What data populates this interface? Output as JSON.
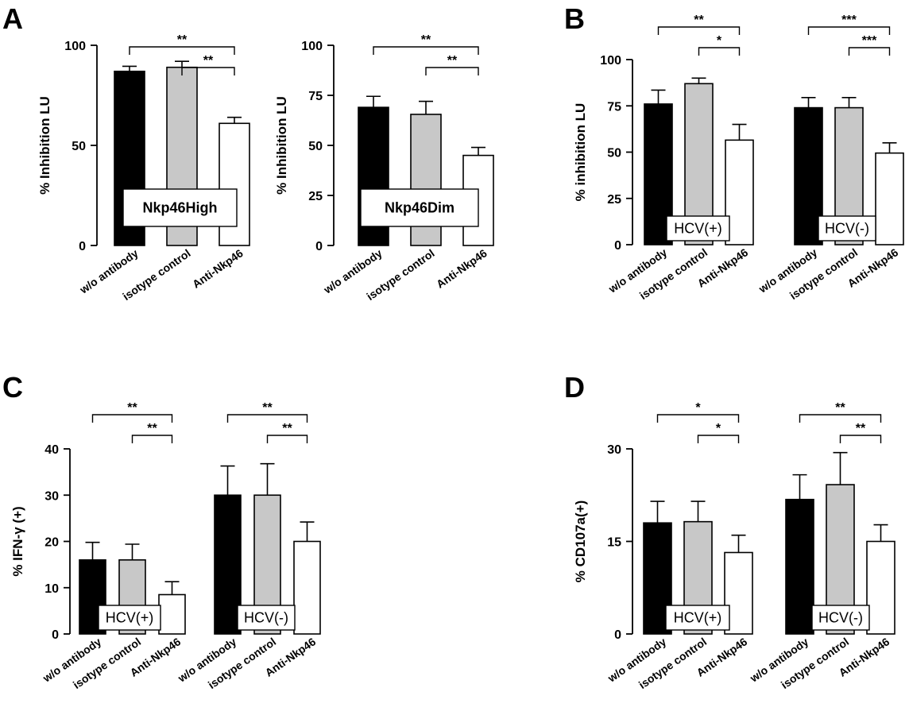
{
  "figure": {
    "panel_letters": [
      "A",
      "B",
      "C",
      "D"
    ]
  },
  "chart_data": [
    {
      "id": "A1",
      "panel": "A",
      "type": "bar",
      "title": "",
      "xlabel": "",
      "ylabel": "% Inhibition LU",
      "ylim": [
        0,
        100
      ],
      "yticks": [
        0,
        50,
        100
      ],
      "categories": [
        "w/o antibody",
        "isotype control",
        "Anti-Nkp46"
      ],
      "groups": [
        {
          "label": "Nkp46High",
          "values": [
            87,
            89,
            61
          ],
          "errors": [
            2.5,
            3,
            3
          ]
        }
      ],
      "fills": [
        "#000000",
        "#c8c8c8",
        "#ffffff"
      ],
      "brackets": [
        {
          "group": 0,
          "from": 0,
          "to": 2,
          "label": "**"
        },
        {
          "group": 0,
          "from": 1,
          "to": 2,
          "label": "**"
        }
      ],
      "grid": false
    },
    {
      "id": "A2",
      "panel": "",
      "type": "bar",
      "title": "",
      "xlabel": "",
      "ylabel": "% Inhibition LU",
      "ylim": [
        0,
        100
      ],
      "yticks": [
        0,
        25,
        50,
        75,
        100
      ],
      "categories": [
        "w/o antibody",
        "isotype control",
        "Anti-Nkp46"
      ],
      "groups": [
        {
          "label": "Nkp46Dim",
          "values": [
            69,
            65.5,
            45
          ],
          "errors": [
            5.5,
            6.5,
            4
          ]
        }
      ],
      "fills": [
        "#000000",
        "#c8c8c8",
        "#ffffff"
      ],
      "brackets": [
        {
          "group": 0,
          "from": 0,
          "to": 2,
          "label": "**"
        },
        {
          "group": 0,
          "from": 1,
          "to": 2,
          "label": "**"
        }
      ],
      "grid": false
    },
    {
      "id": "B",
      "panel": "B",
      "type": "bar",
      "title": "",
      "xlabel": "",
      "ylabel": "% inhibition LU",
      "ylim": [
        0,
        100
      ],
      "yticks": [
        0,
        25,
        50,
        75,
        100
      ],
      "categories": [
        "w/o antibody",
        "isotype control",
        "Anti-Nkp46"
      ],
      "groups": [
        {
          "label": "HCV(+)",
          "values": [
            76,
            87,
            56.5
          ],
          "errors": [
            7.5,
            3,
            8.5
          ]
        },
        {
          "label": "HCV(-)",
          "values": [
            74,
            74,
            49.5
          ],
          "errors": [
            5.5,
            5.5,
            5.5
          ]
        }
      ],
      "fills": [
        "#000000",
        "#c8c8c8",
        "#ffffff"
      ],
      "brackets": [
        {
          "group": 0,
          "from": 0,
          "to": 2,
          "label": "**"
        },
        {
          "group": 0,
          "from": 1,
          "to": 2,
          "label": "*"
        },
        {
          "group": 1,
          "from": 0,
          "to": 2,
          "label": "***"
        },
        {
          "group": 1,
          "from": 1,
          "to": 2,
          "label": "***"
        }
      ],
      "grid": false
    },
    {
      "id": "C",
      "panel": "C",
      "type": "bar",
      "title": "",
      "xlabel": "",
      "ylabel": "% IFN-γ (+)",
      "ylim": [
        0,
        40
      ],
      "yticks": [
        0,
        10,
        20,
        30,
        40
      ],
      "categories": [
        "w/o antibody",
        "isotype control",
        "Anti-Nkp46"
      ],
      "groups": [
        {
          "label": "HCV(+)",
          "values": [
            16,
            16,
            8.5
          ],
          "errors": [
            3.8,
            3.4,
            2.8
          ]
        },
        {
          "label": "HCV(-)",
          "values": [
            30,
            30,
            20
          ],
          "errors": [
            6.3,
            6.8,
            4.2
          ]
        }
      ],
      "fills": [
        "#000000",
        "#c8c8c8",
        "#ffffff"
      ],
      "brackets": [
        {
          "group": 0,
          "from": 0,
          "to": 2,
          "label": "**"
        },
        {
          "group": 0,
          "from": 1,
          "to": 2,
          "label": "**"
        },
        {
          "group": 1,
          "from": 0,
          "to": 2,
          "label": "**"
        },
        {
          "group": 1,
          "from": 1,
          "to": 2,
          "label": "**"
        }
      ],
      "grid": false
    },
    {
      "id": "D",
      "panel": "D",
      "type": "bar",
      "title": "",
      "xlabel": "",
      "ylabel": "% CD107a(+)",
      "ylim": [
        0,
        30
      ],
      "yticks": [
        0,
        15,
        30
      ],
      "categories": [
        "w/o antibody",
        "isotype control",
        "Anti-Nkp46"
      ],
      "groups": [
        {
          "label": "HCV(+)",
          "values": [
            18,
            18.2,
            13.2
          ],
          "errors": [
            3.5,
            3.3,
            2.8
          ]
        },
        {
          "label": "HCV(-)",
          "values": [
            21.8,
            24.2,
            15
          ],
          "errors": [
            4,
            5.2,
            2.7
          ]
        }
      ],
      "fills": [
        "#000000",
        "#c8c8c8",
        "#ffffff"
      ],
      "brackets": [
        {
          "group": 0,
          "from": 0,
          "to": 2,
          "label": "*"
        },
        {
          "group": 0,
          "from": 1,
          "to": 2,
          "label": "*"
        },
        {
          "group": 1,
          "from": 0,
          "to": 2,
          "label": "**"
        },
        {
          "group": 1,
          "from": 1,
          "to": 2,
          "label": "**"
        }
      ],
      "grid": false
    }
  ]
}
